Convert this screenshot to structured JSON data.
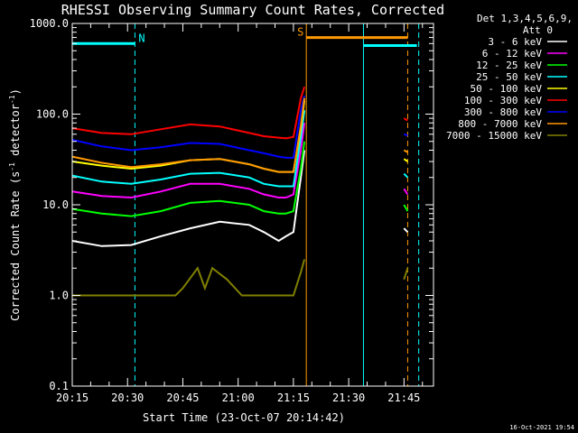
{
  "chart_data": {
    "type": "line",
    "title": "RHESSI Observing Summary Count Rates, Corrected",
    "xlabel": "Start Time (23-Oct-07 20:14:42)",
    "ylabel": "Corrected Count Rate (s⁻¹ detector⁻¹)",
    "ylabel_main": "Corrected Count Rate (s",
    "ylabel_sup1": "-1",
    "ylabel_mid": " detector",
    "ylabel_sup2": "-1",
    "ylabel_end": ")",
    "yscale": "log",
    "ylim": [
      0.1,
      1000
    ],
    "xlim_minutes_after_2015": [
      0,
      98
    ],
    "x_tick_labels": [
      "20:15",
      "20:30",
      "20:45",
      "21:00",
      "21:15",
      "21:30",
      "21:45"
    ],
    "y_tick_labels": [
      "0.1",
      "1.0",
      "10.0",
      "100.0",
      "1000.0"
    ],
    "legend_header_1": "Det 1,3,4,5,6,9,",
    "legend_header_2": "Att 0",
    "legend_position": "right",
    "timestamp": "16-Oct-2021 19:54",
    "series": [
      {
        "name": "3 - 6 keV",
        "color": "#ffffff",
        "points": [
          [
            0,
            4
          ],
          [
            8,
            3.5
          ],
          [
            16,
            3.6
          ],
          [
            24,
            4.5
          ],
          [
            32,
            5.5
          ],
          [
            40,
            6.5
          ],
          [
            48,
            6
          ],
          [
            52,
            5
          ],
          [
            56,
            4
          ],
          [
            58,
            4.5
          ],
          [
            60,
            5
          ],
          [
            62,
            20
          ],
          [
            63,
            40
          ],
          [
            90,
            5.5
          ],
          [
            91,
            5
          ]
        ]
      },
      {
        "name": "6 - 12 keV",
        "color": "#ff00ff",
        "points": [
          [
            0,
            14
          ],
          [
            8,
            12.5
          ],
          [
            16,
            12
          ],
          [
            24,
            14
          ],
          [
            32,
            17
          ],
          [
            40,
            17
          ],
          [
            48,
            15
          ],
          [
            52,
            13
          ],
          [
            56,
            12
          ],
          [
            58,
            12
          ],
          [
            60,
            13
          ],
          [
            62,
            40
          ],
          [
            63,
            80
          ],
          [
            90,
            15
          ],
          [
            91,
            13
          ]
        ]
      },
      {
        "name": "12 - 25 keV",
        "color": "#00ff00",
        "points": [
          [
            0,
            9
          ],
          [
            8,
            8
          ],
          [
            16,
            7.5
          ],
          [
            24,
            8.5
          ],
          [
            32,
            10.5
          ],
          [
            40,
            11
          ],
          [
            48,
            10
          ],
          [
            52,
            8.5
          ],
          [
            56,
            8
          ],
          [
            58,
            8
          ],
          [
            60,
            8.5
          ],
          [
            62,
            25
          ],
          [
            63,
            50
          ],
          [
            90,
            10
          ],
          [
            91,
            8.5
          ]
        ]
      },
      {
        "name": "25 - 50 keV",
        "color": "#00ffff",
        "points": [
          [
            0,
            21
          ],
          [
            8,
            18
          ],
          [
            16,
            17
          ],
          [
            24,
            19
          ],
          [
            32,
            22
          ],
          [
            40,
            22.5
          ],
          [
            48,
            20
          ],
          [
            52,
            17
          ],
          [
            56,
            16
          ],
          [
            58,
            16
          ],
          [
            60,
            16
          ],
          [
            62,
            55
          ],
          [
            63,
            110
          ],
          [
            90,
            22
          ],
          [
            91,
            20
          ]
        ]
      },
      {
        "name": "50 - 100 keV",
        "color": "#ffff00",
        "points": [
          [
            0,
            30
          ],
          [
            8,
            27
          ],
          [
            16,
            25
          ],
          [
            24,
            27
          ],
          [
            32,
            31
          ],
          [
            40,
            32
          ],
          [
            48,
            28
          ],
          [
            52,
            25
          ],
          [
            56,
            23
          ],
          [
            58,
            23
          ],
          [
            60,
            23
          ],
          [
            62,
            70
          ],
          [
            63,
            140
          ],
          [
            90,
            32
          ],
          [
            91,
            30
          ]
        ]
      },
      {
        "name": "100 - 300 keV",
        "color": "#ff0000",
        "points": [
          [
            0,
            70
          ],
          [
            8,
            62
          ],
          [
            16,
            60
          ],
          [
            24,
            68
          ],
          [
            32,
            77
          ],
          [
            40,
            73
          ],
          [
            48,
            62
          ],
          [
            52,
            57
          ],
          [
            56,
            55
          ],
          [
            58,
            54
          ],
          [
            60,
            56
          ],
          [
            62,
            150
          ],
          [
            63,
            200
          ],
          [
            90,
            90
          ],
          [
            91,
            85
          ]
        ]
      },
      {
        "name": "300 - 800 keV",
        "color": "#0000ff",
        "points": [
          [
            0,
            52
          ],
          [
            8,
            44
          ],
          [
            16,
            40
          ],
          [
            24,
            43
          ],
          [
            32,
            48
          ],
          [
            40,
            47
          ],
          [
            48,
            40
          ],
          [
            52,
            37
          ],
          [
            56,
            34
          ],
          [
            58,
            33
          ],
          [
            60,
            33
          ],
          [
            62,
            110
          ],
          [
            63,
            160
          ],
          [
            90,
            60
          ],
          [
            91,
            58
          ]
        ]
      },
      {
        "name": "800 - 7000 keV",
        "color": "#ff9900",
        "points": [
          [
            0,
            34
          ],
          [
            8,
            29
          ],
          [
            16,
            26
          ],
          [
            24,
            28
          ],
          [
            32,
            31
          ],
          [
            40,
            32
          ],
          [
            48,
            28
          ],
          [
            52,
            25
          ],
          [
            56,
            23
          ],
          [
            58,
            23
          ],
          [
            60,
            23
          ],
          [
            62,
            75
          ],
          [
            63,
            150
          ],
          [
            90,
            40
          ],
          [
            91,
            38
          ]
        ]
      },
      {
        "name": "7000 - 15000 keV",
        "color": "#808000",
        "points": [
          [
            0,
            1
          ],
          [
            28,
            1
          ],
          [
            30,
            1.2
          ],
          [
            34,
            2
          ],
          [
            36,
            1.2
          ],
          [
            38,
            2
          ],
          [
            42,
            1.5
          ],
          [
            46,
            1
          ],
          [
            56,
            1
          ],
          [
            60,
            1
          ],
          [
            62,
            1.8
          ],
          [
            63,
            2.5
          ],
          [
            90,
            1.5
          ],
          [
            91,
            2
          ]
        ]
      }
    ],
    "flag_bars": [
      {
        "label": "N",
        "color": "#00ffff",
        "x_start": 0,
        "x_end": 17,
        "level": 600
      },
      {
        "label": "S",
        "color": "#ff9900",
        "x_start": 63.5,
        "x_end": 91,
        "level": 700
      },
      {
        "label": "",
        "color": "#00ffff",
        "x_start": 79,
        "x_end": 93.5,
        "level": 570
      }
    ],
    "vertical_markers": [
      {
        "x": 0,
        "color": "#00ffff",
        "style": "solid"
      },
      {
        "x": 17,
        "color": "#00ffff",
        "style": "dashed"
      },
      {
        "x": 63.5,
        "color": "#ff9900",
        "style": "solid"
      },
      {
        "x": 79,
        "color": "#00ffff",
        "style": "solid"
      },
      {
        "x": 91,
        "color": "#ff9900",
        "style": "dashed"
      },
      {
        "x": 94,
        "color": "#00ffff",
        "style": "dashed"
      }
    ]
  }
}
